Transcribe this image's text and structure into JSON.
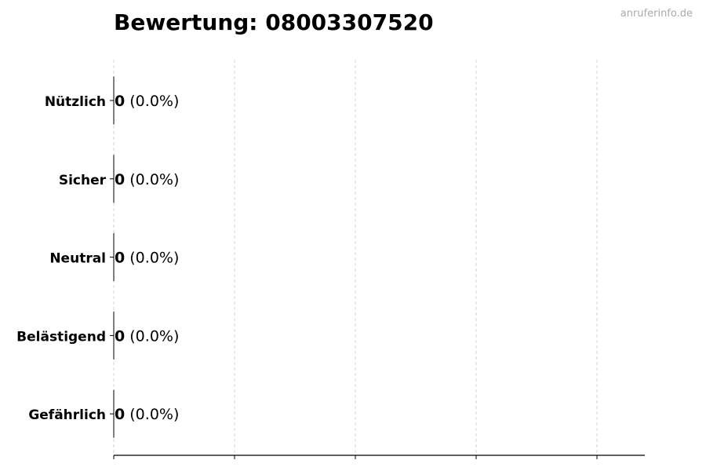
{
  "chart_data": {
    "type": "bar",
    "orientation": "horizontal",
    "title": "Bewertung: 08003307520",
    "watermark": "anruferinfo.de",
    "categories": [
      "Nützlich",
      "Sicher",
      "Neutral",
      "Belästigend",
      "Gefährlich"
    ],
    "values": [
      0,
      0,
      0,
      0,
      0
    ],
    "value_labels": [
      "0",
      "0",
      "0",
      "0",
      "0"
    ],
    "percent_labels": [
      "(0.0%)",
      "(0.0%)",
      "(0.0%)",
      "(0.0%)",
      "(0.0%)"
    ],
    "xlabel": "",
    "ylabel": "",
    "xlim": [
      0,
      1
    ],
    "x_tick_labels_shown": false,
    "grid": "vertical dashed",
    "colors": {
      "bar_edge": "#000000",
      "grid": "#cccccc",
      "watermark": "#aaaaaa"
    }
  }
}
